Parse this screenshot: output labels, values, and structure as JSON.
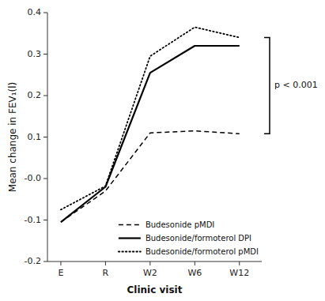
{
  "chart_data": {
    "type": "line",
    "categories": [
      "E",
      "R",
      "W2",
      "W6",
      "W12"
    ],
    "series": [
      {
        "name": "Budesonide pMDI",
        "color": "#000000",
        "line_style": "dashed",
        "values": [
          -0.105,
          -0.03,
          0.11,
          0.115,
          0.108
        ]
      },
      {
        "name": "Budesonide/formoterol DPI",
        "color": "#000000",
        "line_style": "solid",
        "values": [
          -0.105,
          -0.02,
          0.255,
          0.32,
          0.32
        ]
      },
      {
        "name": "Budesonide/formoterol pMDI",
        "color": "#000000",
        "line_style": "dotted",
        "values": [
          -0.075,
          -0.018,
          0.295,
          0.365,
          0.34
        ]
      }
    ],
    "xlabel": "Clinic visit",
    "ylabel": "Mean change in FEV₁(l)",
    "ylim": [
      -0.2,
      0.4
    ],
    "yticks": [
      -0.2,
      -0.1,
      {
        "value": 0.0,
        "label": "-0.0"
      },
      0.1,
      0.2,
      0.3,
      0.4
    ],
    "annotations": [
      {
        "text": "p < 0.001",
        "y_range": [
          0.108,
          0.34
        ]
      }
    ],
    "legend": "lower right",
    "grid": false
  }
}
